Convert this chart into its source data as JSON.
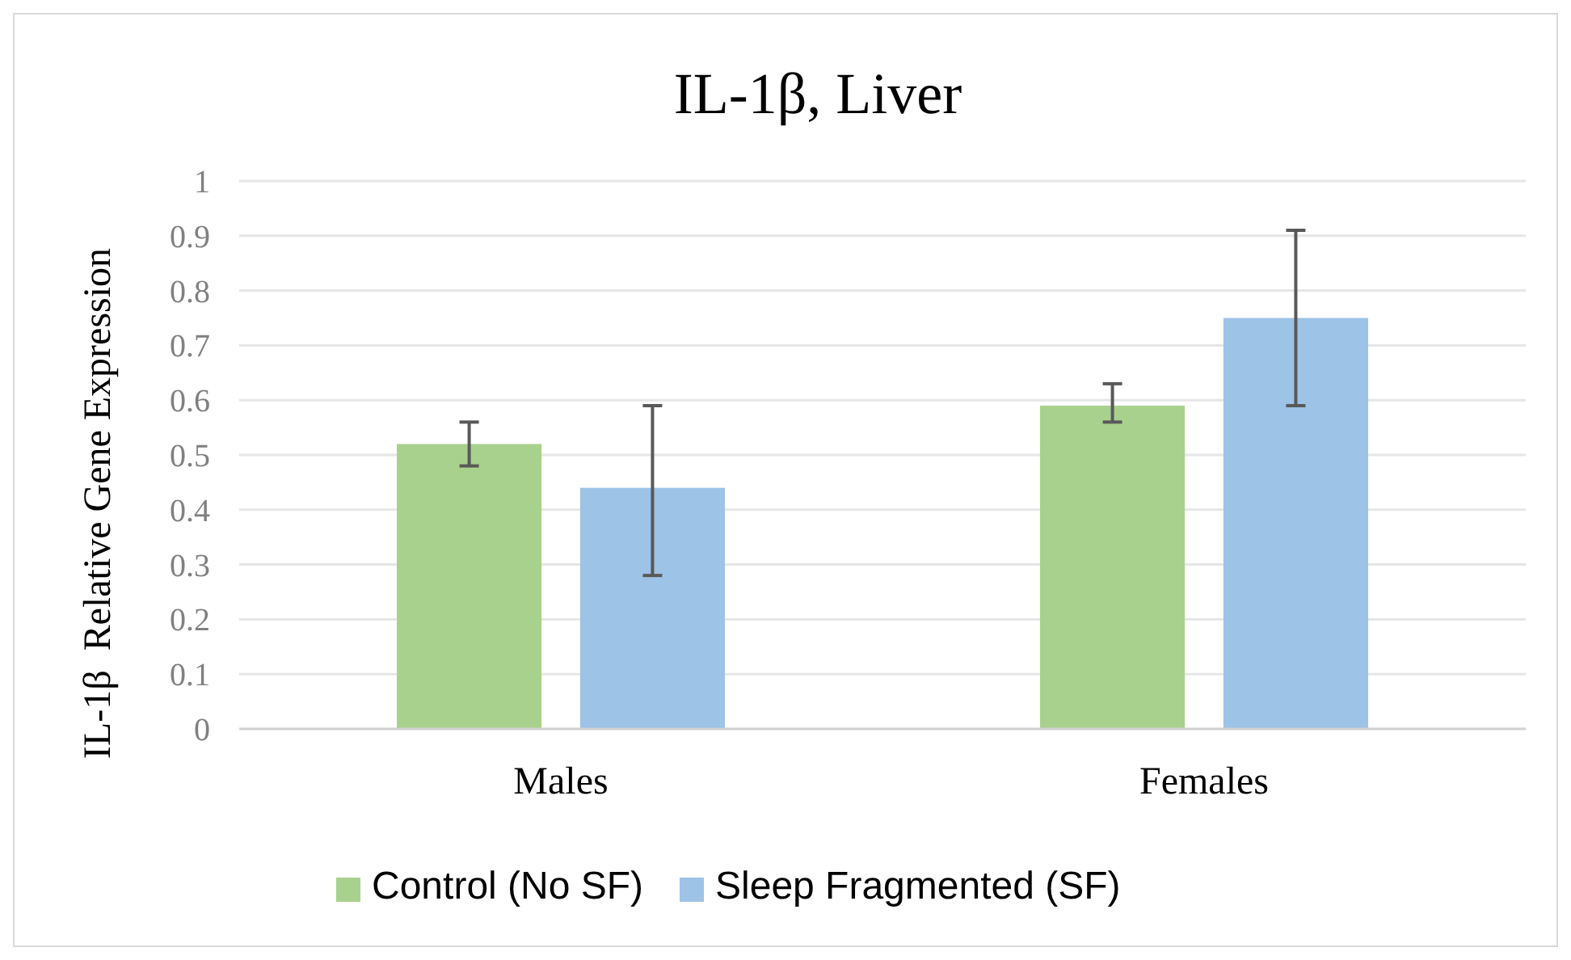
{
  "chart_data": {
    "type": "bar",
    "title": "IL-1β, Liver",
    "ylabel": "IL-1β  Relative Gene Expression",
    "categories": [
      "Males",
      "Females"
    ],
    "series": [
      {
        "name": "Control (No SF)",
        "color": "#a9d18e",
        "values": [
          0.52,
          0.59
        ],
        "errors": [
          [
            0.48,
            0.56
          ],
          [
            0.56,
            0.63
          ]
        ]
      },
      {
        "name": "Sleep Fragmented (SF)",
        "color": "#9dc3e6",
        "values": [
          0.44,
          0.75
        ],
        "errors": [
          [
            0.28,
            0.59
          ],
          [
            0.59,
            0.91
          ]
        ]
      }
    ],
    "ylim": [
      0,
      1
    ],
    "yticks": [
      0,
      0.1,
      0.2,
      0.3,
      0.4,
      0.5,
      0.6,
      0.7,
      0.8,
      0.9,
      1
    ],
    "grid": "y",
    "legend": "bottom"
  }
}
